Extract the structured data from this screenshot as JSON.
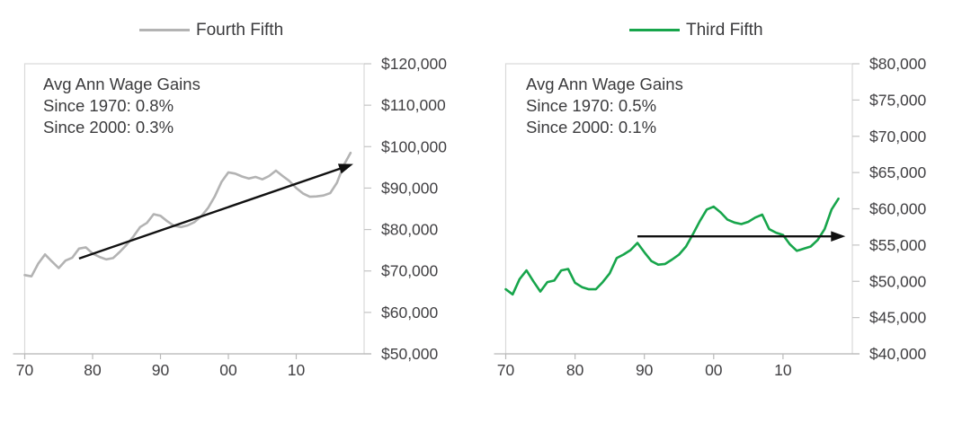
{
  "chart_data": [
    {
      "type": "line",
      "legend": "Fourth Fifth",
      "line_color": "#b3b3b3",
      "annotation": [
        "Avg Ann Wage Gains",
        "Since 1970: 0.8%",
        "Since 2000: 0.3%"
      ],
      "year_start": 1970,
      "values": [
        69000,
        68700,
        71800,
        74000,
        72300,
        70700,
        72500,
        73200,
        75400,
        75700,
        74200,
        73400,
        72800,
        73100,
        74600,
        76300,
        78300,
        80600,
        81600,
        83700,
        83300,
        82000,
        80900,
        80600,
        81000,
        81800,
        83200,
        85200,
        88000,
        91500,
        93800,
        93500,
        92800,
        92300,
        92700,
        92100,
        92900,
        94200,
        92900,
        91700,
        90000,
        88700,
        87900,
        88000,
        88200,
        88800,
        91300,
        95500,
        98500
      ],
      "xlim": [
        1970,
        2020
      ],
      "ylim": [
        50000,
        120000
      ],
      "grid": "off",
      "legend_position": "top",
      "y_tick_values": [
        120000,
        110000,
        100000,
        90000,
        80000,
        70000,
        60000,
        50000
      ],
      "y_tick_labels": [
        "$120,000",
        "$110,000",
        "$100,000",
        "$90,000",
        "$80,000",
        "$70,000",
        "$60,000",
        "$50,000"
      ],
      "x_tick_years": [
        1970,
        1980,
        1990,
        2000,
        2010
      ],
      "x_tick_labels": [
        "70",
        "80",
        "90",
        "00",
        "10"
      ],
      "trend_arrow": {
        "year_start": 1978,
        "value_start": 73000,
        "year_end": 2018.4,
        "value_end": 95800,
        "color": "#111111"
      }
    },
    {
      "type": "line",
      "legend": "Third Fifth",
      "line_color": "#17a54b",
      "annotation": [
        "Avg Ann Wage Gains",
        "Since 1970: 0.5%",
        "Since 2000: 0.1%"
      ],
      "year_start": 1970,
      "values": [
        48900,
        48200,
        50300,
        51500,
        50000,
        48600,
        49900,
        50100,
        51500,
        51700,
        49800,
        49200,
        48900,
        48900,
        49900,
        51100,
        53200,
        53700,
        54300,
        55300,
        54000,
        52800,
        52300,
        52400,
        53000,
        53700,
        54800,
        56500,
        58300,
        59900,
        60300,
        59500,
        58500,
        58100,
        57900,
        58200,
        58800,
        59200,
        57200,
        56700,
        56400,
        55100,
        54200,
        54500,
        54800,
        55700,
        57200,
        59900,
        61400
      ],
      "xlim": [
        1970,
        2020
      ],
      "ylim": [
        40000,
        80000
      ],
      "grid": "off",
      "legend_position": "top",
      "y_tick_values": [
        80000,
        75000,
        70000,
        65000,
        60000,
        55000,
        50000,
        45000,
        40000
      ],
      "y_tick_labels": [
        "$80,000",
        "$75,000",
        "$70,000",
        "$65,000",
        "$60,000",
        "$55,000",
        "$50,000",
        "$45,000",
        "$40,000"
      ],
      "x_tick_years": [
        1970,
        1980,
        1990,
        2000,
        2010
      ],
      "x_tick_labels": [
        "70",
        "80",
        "90",
        "00",
        "10"
      ],
      "trend_arrow": {
        "year_start": 1989,
        "value_start": 56200,
        "year_end": 2019,
        "value_end": 56200,
        "color": "#111111"
      }
    }
  ],
  "colors": {
    "plot_border": "#d9d9d9",
    "axis_line": "#b9b9b9",
    "tick_mark": "#c4c4c4",
    "tick_text": "#414043"
  }
}
